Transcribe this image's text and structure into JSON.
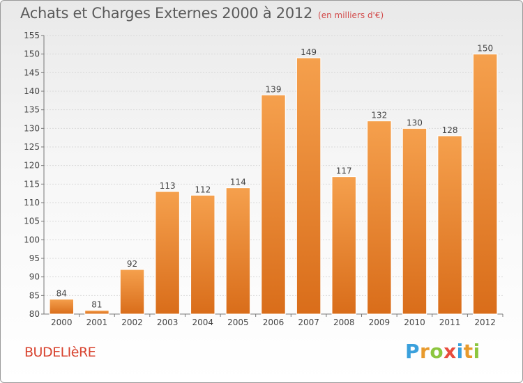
{
  "title": {
    "main": "Achats et Charges Externes 2000 à 2012",
    "unit": "(en milliers d'€)"
  },
  "commune": "BUDELIèRE",
  "brand": {
    "letters": [
      "P",
      "r",
      "o",
      "x",
      "i",
      "t",
      "i"
    ]
  },
  "colors": {
    "bar_light": "#f5a04d",
    "bar_dark": "#d96d1a",
    "title": "#5a5a5a",
    "commune": "#d8432f",
    "grid": "#d9d9d9"
  },
  "chart_data": {
    "type": "bar",
    "title": "Achats et Charges Externes 2000 à 2012",
    "xlabel": "",
    "ylabel": "",
    "categories": [
      "2000",
      "2001",
      "2002",
      "2003",
      "2004",
      "2005",
      "2006",
      "2007",
      "2008",
      "2009",
      "2010",
      "2011",
      "2012"
    ],
    "values": [
      84,
      81,
      92,
      113,
      112,
      114,
      139,
      149,
      117,
      132,
      130,
      128,
      150
    ],
    "ylim": [
      80,
      155
    ],
    "yticks": [
      80,
      85,
      90,
      95,
      100,
      105,
      110,
      115,
      120,
      125,
      130,
      135,
      140,
      145,
      150,
      155
    ],
    "grid": true,
    "data_labels": true
  }
}
